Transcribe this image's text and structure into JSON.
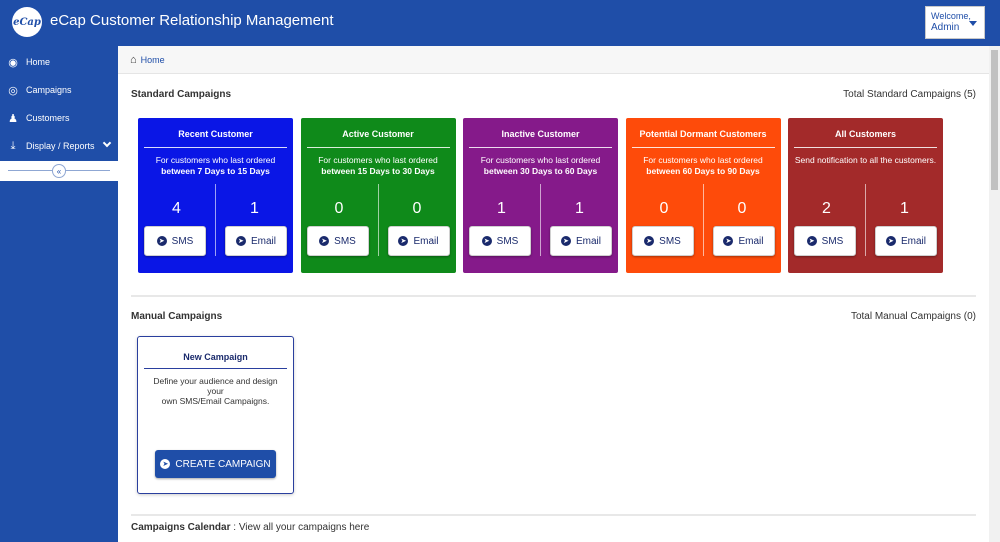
{
  "header": {
    "logo_text": "eCap",
    "app_title": "eCap Customer Relationship Management",
    "welcome_label": "Welcome,",
    "user_name": "Admin"
  },
  "sidebar": {
    "items": [
      {
        "label": "Home",
        "icon": "dashboard-icon"
      },
      {
        "label": "Campaigns",
        "icon": "target-icon"
      },
      {
        "label": "Customers",
        "icon": "user-icon"
      },
      {
        "label": "Display / Reports",
        "icon": "download-icon"
      }
    ],
    "collapse_glyph": "«"
  },
  "breadcrumb": {
    "home": "Home"
  },
  "standard": {
    "title": "Standard Campaigns",
    "total": "Total Standard Campaigns (5)",
    "sms_label": "SMS",
    "email_label": "Email",
    "cards": [
      {
        "title": "Recent Customer",
        "desc_line1": "For customers who last ordered",
        "desc_line2": "between 7 Days to 15 Days",
        "sms_count": "4",
        "email_count": "1",
        "color": "#0a16e6"
      },
      {
        "title": "Active Customer",
        "desc_line1": "For customers who last ordered",
        "desc_line2": "between 15 Days to 30 Days",
        "sms_count": "0",
        "email_count": "0",
        "color": "#0f8a1a"
      },
      {
        "title": "Inactive Customer",
        "desc_line1": "For customers who last ordered",
        "desc_line2": "between 30 Days to 60 Days",
        "sms_count": "1",
        "email_count": "1",
        "color": "#851a8a"
      },
      {
        "title": "Potential Dormant Customers",
        "desc_line1": "For customers who last ordered",
        "desc_line2": "between 60 Days to 90 Days",
        "sms_count": "0",
        "email_count": "0",
        "color": "#fe4b0a"
      },
      {
        "title": "All Customers",
        "desc_line1": "Send notification to all the customers.",
        "desc_line2": "",
        "sms_count": "2",
        "email_count": "1",
        "color": "#a32a2a"
      }
    ]
  },
  "manual": {
    "title": "Manual Campaigns",
    "total": "Total Manual Campaigns (0)",
    "new_card": {
      "title": "New Campaign",
      "desc_line1": "Define your audience and design your",
      "desc_line2": "own SMS/Email Campaigns.",
      "button": "CREATE CAMPAIGN"
    }
  },
  "calendar": {
    "title": "Campaigns Calendar",
    "subtitle": " : View all your campaigns here"
  }
}
